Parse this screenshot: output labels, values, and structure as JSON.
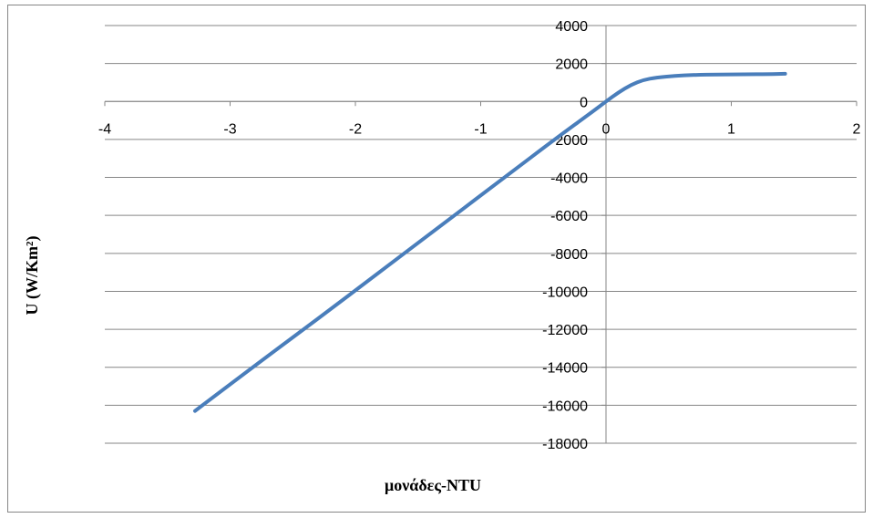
{
  "chart_data": {
    "type": "scatter",
    "title": "",
    "xlabel": "μονάδες-NTU",
    "ylabel": "U (W/Km²)",
    "xlim": [
      -4,
      2
    ],
    "ylim": [
      -18000,
      4000
    ],
    "x_ticks": [
      -4,
      -3,
      -2,
      -1,
      0,
      1,
      2
    ],
    "y_ticks": [
      4000,
      2000,
      0,
      -2000,
      -4000,
      -6000,
      -8000,
      -10000,
      -12000,
      -14000,
      -16000,
      -18000
    ],
    "grid": "horizontal",
    "legend": "none",
    "series": [
      {
        "color": "#4a7ebb",
        "x": [
          -3.28,
          -2.8,
          -2.3,
          -1.8,
          -1.3,
          -0.8,
          -0.4,
          -0.1,
          0.0,
          0.1,
          0.2,
          0.3,
          0.4,
          0.55,
          0.7,
          0.9,
          1.1,
          1.3,
          1.43
        ],
        "y": [
          -16300,
          -13900,
          -11450,
          -8950,
          -6450,
          -3950,
          -1950,
          -500,
          0,
          480,
          880,
          1140,
          1260,
          1350,
          1400,
          1420,
          1430,
          1440,
          1460
        ]
      }
    ]
  }
}
